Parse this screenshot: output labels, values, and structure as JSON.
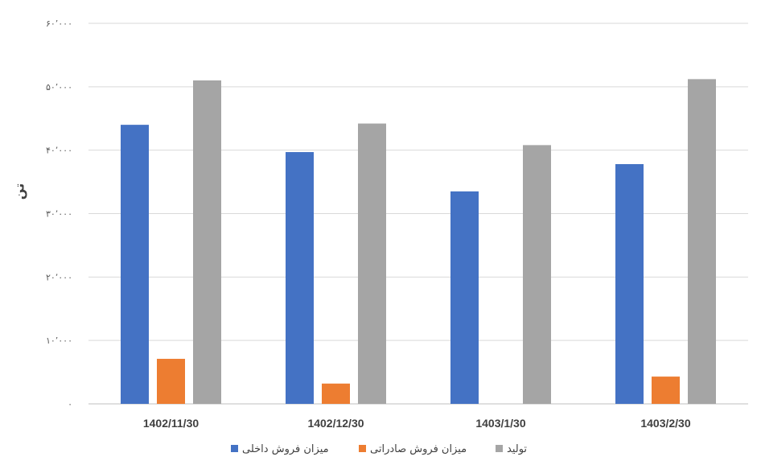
{
  "chart_data": {
    "type": "bar",
    "ylabel": "تن",
    "ylim": [
      0,
      60000
    ],
    "y_ticks": [
      0,
      10000,
      20000,
      30000,
      40000,
      50000,
      60000
    ],
    "y_tick_labels": [
      "۰",
      "۱۰٬۰۰۰",
      "۲۰٬۰۰۰",
      "۳۰٬۰۰۰",
      "۴۰٬۰۰۰",
      "۵۰٬۰۰۰",
      "۶۰٬۰۰۰"
    ],
    "grid": true,
    "legend_position": "bottom",
    "categories": [
      "1402/11/30",
      "1402/12/30",
      "1403/1/30",
      "1403/2/30"
    ],
    "series": [
      {
        "name": "میزان فروش داخلی",
        "color": "#4472C4",
        "values": [
          44000,
          39700,
          33500,
          37800
        ]
      },
      {
        "name": "میزان فروش صادراتی",
        "color": "#ED7D31",
        "values": [
          7100,
          3200,
          0,
          4300
        ]
      },
      {
        "name": "تولید",
        "color": "#A5A5A5",
        "values": [
          51000,
          44200,
          40800,
          51200
        ]
      }
    ]
  }
}
